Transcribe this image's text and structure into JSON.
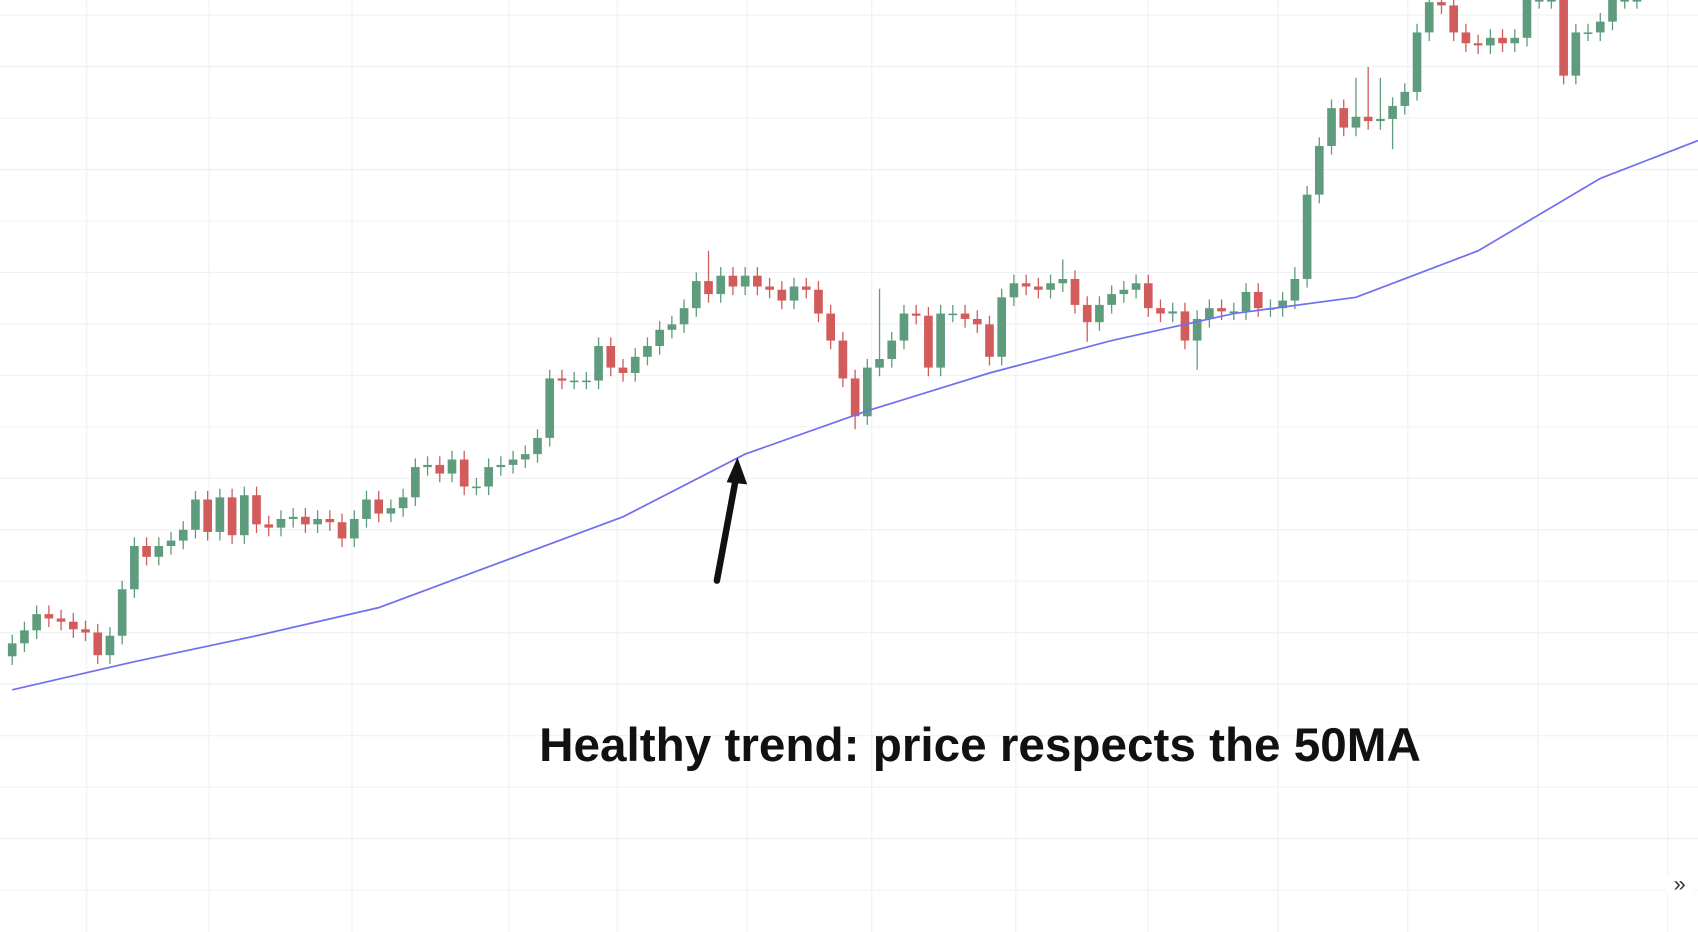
{
  "chart_data": {
    "type": "candlestick",
    "annotation": "Healthy trend: price respects the 50MA",
    "up_color": "#5f9c7e",
    "down_color": "#d25b5b",
    "xlim": [
      -1,
      138
    ],
    "ylim": [
      0,
      862
    ],
    "open": [
      255,
      267,
      279,
      294,
      290,
      287,
      280,
      277,
      256,
      274,
      317,
      357,
      347,
      357,
      362,
      372,
      400,
      370,
      402,
      367,
      404,
      377,
      374,
      382,
      384,
      377,
      382,
      379,
      364,
      382,
      400,
      387,
      392,
      402,
      430,
      432,
      424,
      437,
      412,
      412,
      430,
      432,
      437,
      442,
      457,
      512,
      510,
      510,
      510,
      542,
      522,
      517,
      532,
      542,
      557,
      562,
      577,
      602,
      590,
      607,
      597,
      607,
      597,
      594,
      584,
      597,
      594,
      572,
      547,
      512,
      477,
      522,
      530,
      547,
      572,
      570,
      522,
      572,
      572,
      567,
      562,
      532,
      587,
      600,
      597,
      594,
      600,
      604,
      580,
      564,
      580,
      590,
      594,
      600,
      577,
      572,
      574,
      547,
      567,
      577,
      574,
      574,
      592,
      577,
      577,
      584,
      604,
      682,
      727,
      762,
      744,
      754,
      750,
      752,
      764,
      777,
      832,
      860,
      857,
      832,
      822,
      820,
      827,
      822,
      827,
      862,
      862,
      862,
      792,
      832,
      832,
      842,
      862,
      862
    ],
    "high": [
      275,
      287,
      302,
      302,
      298,
      295,
      288,
      285,
      282,
      325,
      365,
      365,
      365,
      370,
      380,
      408,
      408,
      410,
      410,
      412,
      412,
      385,
      390,
      392,
      392,
      390,
      390,
      387,
      390,
      408,
      408,
      400,
      410,
      438,
      440,
      440,
      445,
      445,
      420,
      438,
      440,
      445,
      450,
      465,
      520,
      520,
      518,
      518,
      550,
      550,
      530,
      540,
      550,
      565,
      570,
      585,
      610,
      630,
      615,
      615,
      615,
      615,
      605,
      602,
      605,
      605,
      602,
      580,
      555,
      520,
      530,
      595,
      555,
      580,
      580,
      578,
      580,
      580,
      580,
      575,
      570,
      595,
      608,
      608,
      605,
      608,
      622,
      612,
      588,
      588,
      598,
      602,
      608,
      608,
      585,
      582,
      582,
      575,
      585,
      585,
      582,
      600,
      600,
      585,
      592,
      615,
      690,
      735,
      770,
      770,
      790,
      800,
      790,
      772,
      785,
      840,
      868,
      868,
      865,
      840,
      830,
      835,
      835,
      835,
      870,
      870,
      870,
      870,
      840,
      840,
      850,
      870,
      870,
      870
    ],
    "low": [
      247,
      259,
      271,
      282,
      279,
      272,
      269,
      248,
      248,
      266,
      309,
      339,
      339,
      349,
      354,
      364,
      362,
      362,
      359,
      359,
      369,
      366,
      366,
      374,
      369,
      369,
      371,
      356,
      356,
      374,
      379,
      379,
      384,
      394,
      422,
      416,
      416,
      404,
      404,
      404,
      422,
      424,
      429,
      434,
      449,
      502,
      502,
      502,
      502,
      514,
      509,
      509,
      524,
      534,
      549,
      554,
      569,
      582,
      582,
      589,
      589,
      589,
      586,
      576,
      576,
      586,
      564,
      539,
      504,
      465,
      469,
      514,
      522,
      539,
      562,
      514,
      514,
      564,
      559,
      554,
      524,
      524,
      579,
      589,
      586,
      586,
      592,
      572,
      546,
      556,
      572,
      582,
      586,
      569,
      564,
      564,
      539,
      520,
      559,
      566,
      566,
      566,
      569,
      569,
      569,
      576,
      596,
      674,
      719,
      736,
      736,
      742,
      742,
      724,
      756,
      769,
      824,
      849,
      824,
      814,
      812,
      812,
      814,
      814,
      819,
      854,
      854,
      784,
      784,
      824,
      824,
      834,
      854,
      854
    ],
    "close": [
      267,
      279,
      294,
      290,
      287,
      280,
      277,
      256,
      274,
      317,
      357,
      347,
      357,
      362,
      372,
      400,
      370,
      402,
      367,
      404,
      377,
      374,
      382,
      384,
      377,
      382,
      379,
      364,
      382,
      400,
      387,
      392,
      402,
      430,
      432,
      424,
      437,
      412,
      412,
      430,
      432,
      437,
      442,
      457,
      512,
      510,
      510,
      510,
      542,
      522,
      517,
      532,
      542,
      557,
      562,
      577,
      602,
      590,
      607,
      597,
      607,
      597,
      594,
      584,
      597,
      594,
      572,
      547,
      512,
      477,
      522,
      530,
      547,
      572,
      570,
      522,
      572,
      572,
      567,
      562,
      532,
      587,
      600,
      597,
      594,
      600,
      604,
      580,
      564,
      580,
      590,
      594,
      600,
      577,
      572,
      574,
      547,
      567,
      577,
      574,
      574,
      592,
      577,
      577,
      584,
      604,
      682,
      727,
      762,
      744,
      754,
      750,
      752,
      764,
      777,
      832,
      860,
      857,
      832,
      822,
      820,
      827,
      822,
      827,
      862,
      862,
      862,
      792,
      832,
      832,
      842,
      862,
      862,
      862
    ],
    "ma": {
      "color": "#7070ee",
      "x": [
        0,
        10,
        20,
        30,
        40,
        50,
        60,
        70,
        80,
        90,
        100,
        110,
        120,
        130,
        138
      ],
      "values": [
        224,
        250,
        274,
        300,
        342,
        384,
        442,
        482,
        517,
        547,
        572,
        587,
        630,
        697,
        732
      ]
    }
  },
  "ui": {
    "scroll_button": "»"
  }
}
